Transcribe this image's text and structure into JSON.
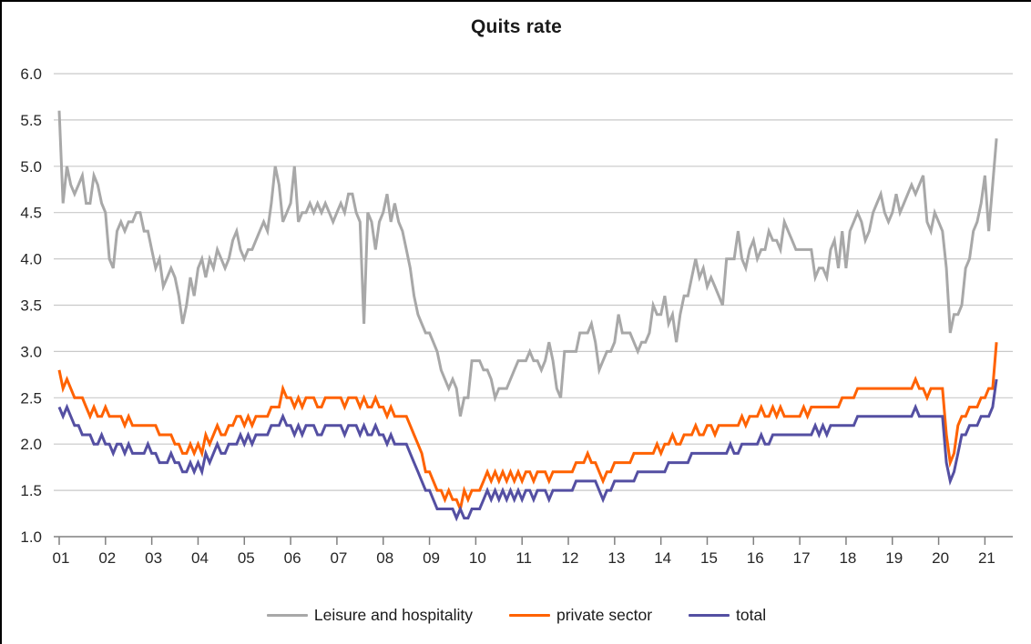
{
  "chart_data": {
    "type": "line",
    "title": "Quits rate",
    "x_start": "2001-01",
    "x_frequency": "monthly",
    "x_tick_labels": [
      "01",
      "02",
      "03",
      "04",
      "05",
      "06",
      "07",
      "08",
      "09",
      "10",
      "11",
      "12",
      "13",
      "14",
      "15",
      "16",
      "17",
      "18",
      "19",
      "20",
      "21"
    ],
    "y_tick_labels": [
      "6.0",
      "5.5",
      "5.0",
      "4.5",
      "4.0",
      "3.5",
      "3.0",
      "2.5",
      "2.0",
      "1.5",
      "1.0"
    ],
    "ylim": [
      1.0,
      6.0
    ],
    "y_tick_step": 0.5,
    "grid": "horizontal",
    "legend_position": "bottom",
    "grid_color": "#c9c9c9",
    "axis_color": "#808080",
    "text_color": "#262626",
    "series": [
      {
        "name": "Leisure and hospitality",
        "color": "#a8a8a8",
        "values": [
          5.6,
          4.6,
          5.0,
          4.8,
          4.7,
          4.8,
          4.9,
          4.6,
          4.6,
          4.9,
          4.8,
          4.6,
          4.5,
          4.0,
          3.9,
          4.3,
          4.4,
          4.3,
          4.4,
          4.4,
          4.5,
          4.5,
          4.3,
          4.3,
          4.1,
          3.9,
          4.0,
          3.7,
          3.8,
          3.9,
          3.8,
          3.6,
          3.3,
          3.5,
          3.8,
          3.6,
          3.9,
          4.0,
          3.8,
          4.0,
          3.9,
          4.1,
          4.0,
          3.9,
          4.0,
          4.2,
          4.3,
          4.1,
          4.0,
          4.1,
          4.1,
          4.2,
          4.3,
          4.4,
          4.3,
          4.6,
          5.0,
          4.8,
          4.4,
          4.5,
          4.6,
          5.0,
          4.4,
          4.5,
          4.5,
          4.6,
          4.5,
          4.6,
          4.5,
          4.6,
          4.5,
          4.4,
          4.5,
          4.6,
          4.5,
          4.7,
          4.7,
          4.5,
          4.4,
          3.3,
          4.5,
          4.4,
          4.1,
          4.4,
          4.5,
          4.7,
          4.4,
          4.6,
          4.4,
          4.3,
          4.1,
          3.9,
          3.6,
          3.4,
          3.3,
          3.2,
          3.2,
          3.1,
          3.0,
          2.8,
          2.7,
          2.6,
          2.7,
          2.6,
          2.3,
          2.5,
          2.5,
          2.9,
          2.9,
          2.9,
          2.8,
          2.8,
          2.7,
          2.5,
          2.6,
          2.6,
          2.6,
          2.7,
          2.8,
          2.9,
          2.9,
          2.9,
          3.0,
          2.9,
          2.9,
          2.8,
          2.9,
          3.1,
          2.9,
          2.6,
          2.5,
          3.0,
          3.0,
          3.0,
          3.0,
          3.2,
          3.2,
          3.2,
          3.3,
          3.1,
          2.8,
          2.9,
          3.0,
          3.0,
          3.1,
          3.4,
          3.2,
          3.2,
          3.2,
          3.1,
          3.0,
          3.1,
          3.1,
          3.2,
          3.5,
          3.4,
          3.4,
          3.6,
          3.3,
          3.4,
          3.1,
          3.4,
          3.6,
          3.6,
          3.8,
          4.0,
          3.8,
          3.9,
          3.7,
          3.8,
          3.7,
          3.6,
          3.5,
          4.0,
          4.0,
          4.0,
          4.3,
          4.0,
          3.9,
          4.1,
          4.2,
          4.0,
          4.1,
          4.1,
          4.3,
          4.2,
          4.2,
          4.1,
          4.4,
          4.3,
          4.2,
          4.1,
          4.1,
          4.1,
          4.1,
          4.1,
          3.8,
          3.9,
          3.9,
          3.8,
          4.1,
          4.2,
          3.9,
          4.3,
          3.9,
          4.3,
          4.4,
          4.5,
          4.4,
          4.2,
          4.3,
          4.5,
          4.6,
          4.7,
          4.5,
          4.4,
          4.5,
          4.7,
          4.5,
          4.6,
          4.7,
          4.8,
          4.7,
          4.8,
          4.9,
          4.4,
          4.3,
          4.5,
          4.4,
          4.3,
          3.9,
          3.2,
          3.4,
          3.4,
          3.5,
          3.9,
          4.0,
          4.3,
          4.4,
          4.6,
          4.9,
          4.3,
          4.8,
          5.3
        ]
      },
      {
        "name": "private sector",
        "color": "#ff6200",
        "values": [
          2.8,
          2.6,
          2.7,
          2.6,
          2.5,
          2.5,
          2.5,
          2.4,
          2.3,
          2.4,
          2.3,
          2.3,
          2.4,
          2.3,
          2.3,
          2.3,
          2.3,
          2.2,
          2.3,
          2.2,
          2.2,
          2.2,
          2.2,
          2.2,
          2.2,
          2.2,
          2.1,
          2.1,
          2.1,
          2.1,
          2.0,
          2.0,
          1.9,
          1.9,
          2.0,
          1.9,
          2.0,
          1.9,
          2.1,
          2.0,
          2.1,
          2.2,
          2.1,
          2.1,
          2.2,
          2.2,
          2.3,
          2.3,
          2.2,
          2.3,
          2.2,
          2.3,
          2.3,
          2.3,
          2.3,
          2.4,
          2.4,
          2.4,
          2.6,
          2.5,
          2.5,
          2.4,
          2.5,
          2.4,
          2.5,
          2.5,
          2.5,
          2.4,
          2.4,
          2.5,
          2.5,
          2.5,
          2.5,
          2.5,
          2.4,
          2.5,
          2.5,
          2.5,
          2.4,
          2.5,
          2.4,
          2.4,
          2.5,
          2.4,
          2.4,
          2.3,
          2.4,
          2.3,
          2.3,
          2.3,
          2.3,
          2.2,
          2.1,
          2.0,
          1.9,
          1.7,
          1.7,
          1.6,
          1.5,
          1.5,
          1.4,
          1.5,
          1.4,
          1.4,
          1.3,
          1.5,
          1.4,
          1.5,
          1.5,
          1.5,
          1.6,
          1.7,
          1.6,
          1.7,
          1.6,
          1.7,
          1.6,
          1.7,
          1.6,
          1.7,
          1.6,
          1.7,
          1.7,
          1.6,
          1.7,
          1.7,
          1.7,
          1.6,
          1.7,
          1.7,
          1.7,
          1.7,
          1.7,
          1.7,
          1.8,
          1.8,
          1.8,
          1.9,
          1.8,
          1.8,
          1.7,
          1.6,
          1.7,
          1.7,
          1.8,
          1.8,
          1.8,
          1.8,
          1.8,
          1.9,
          1.9,
          1.9,
          1.9,
          1.9,
          1.9,
          2.0,
          1.9,
          2.0,
          2.0,
          2.1,
          2.0,
          2.0,
          2.1,
          2.1,
          2.1,
          2.2,
          2.1,
          2.1,
          2.2,
          2.2,
          2.1,
          2.2,
          2.2,
          2.2,
          2.2,
          2.2,
          2.2,
          2.3,
          2.2,
          2.3,
          2.3,
          2.3,
          2.4,
          2.3,
          2.3,
          2.4,
          2.3,
          2.4,
          2.3,
          2.3,
          2.3,
          2.3,
          2.3,
          2.4,
          2.3,
          2.4,
          2.4,
          2.4,
          2.4,
          2.4,
          2.4,
          2.4,
          2.4,
          2.5,
          2.5,
          2.5,
          2.5,
          2.6,
          2.6,
          2.6,
          2.6,
          2.6,
          2.6,
          2.6,
          2.6,
          2.6,
          2.6,
          2.6,
          2.6,
          2.6,
          2.6,
          2.6,
          2.7,
          2.6,
          2.6,
          2.5,
          2.6,
          2.6,
          2.6,
          2.6,
          2.1,
          1.8,
          1.9,
          2.2,
          2.3,
          2.3,
          2.4,
          2.4,
          2.4,
          2.5,
          2.5,
          2.6,
          2.6,
          3.1
        ]
      },
      {
        "name": "total",
        "color": "#544fa2",
        "values": [
          2.4,
          2.3,
          2.4,
          2.3,
          2.2,
          2.2,
          2.1,
          2.1,
          2.1,
          2.0,
          2.0,
          2.1,
          2.0,
          2.0,
          1.9,
          2.0,
          2.0,
          1.9,
          2.0,
          1.9,
          1.9,
          1.9,
          1.9,
          2.0,
          1.9,
          1.9,
          1.8,
          1.8,
          1.8,
          1.9,
          1.8,
          1.8,
          1.7,
          1.7,
          1.8,
          1.7,
          1.8,
          1.7,
          1.9,
          1.8,
          1.9,
          2.0,
          1.9,
          1.9,
          2.0,
          2.0,
          2.0,
          2.1,
          2.0,
          2.1,
          2.0,
          2.1,
          2.1,
          2.1,
          2.1,
          2.2,
          2.2,
          2.2,
          2.3,
          2.2,
          2.2,
          2.1,
          2.2,
          2.1,
          2.2,
          2.2,
          2.2,
          2.1,
          2.1,
          2.2,
          2.2,
          2.2,
          2.2,
          2.2,
          2.1,
          2.2,
          2.2,
          2.2,
          2.1,
          2.2,
          2.1,
          2.1,
          2.2,
          2.1,
          2.1,
          2.0,
          2.1,
          2.0,
          2.0,
          2.0,
          2.0,
          1.9,
          1.8,
          1.7,
          1.6,
          1.5,
          1.5,
          1.4,
          1.3,
          1.3,
          1.3,
          1.3,
          1.3,
          1.2,
          1.3,
          1.2,
          1.2,
          1.3,
          1.3,
          1.3,
          1.4,
          1.5,
          1.4,
          1.5,
          1.4,
          1.5,
          1.4,
          1.5,
          1.4,
          1.5,
          1.4,
          1.5,
          1.5,
          1.4,
          1.5,
          1.5,
          1.5,
          1.4,
          1.5,
          1.5,
          1.5,
          1.5,
          1.5,
          1.5,
          1.6,
          1.6,
          1.6,
          1.6,
          1.6,
          1.6,
          1.5,
          1.4,
          1.5,
          1.5,
          1.6,
          1.6,
          1.6,
          1.6,
          1.6,
          1.6,
          1.7,
          1.7,
          1.7,
          1.7,
          1.7,
          1.7,
          1.7,
          1.7,
          1.8,
          1.8,
          1.8,
          1.8,
          1.8,
          1.8,
          1.9,
          1.9,
          1.9,
          1.9,
          1.9,
          1.9,
          1.9,
          1.9,
          1.9,
          1.9,
          2.0,
          1.9,
          1.9,
          2.0,
          2.0,
          2.0,
          2.0,
          2.0,
          2.1,
          2.0,
          2.0,
          2.1,
          2.1,
          2.1,
          2.1,
          2.1,
          2.1,
          2.1,
          2.1,
          2.1,
          2.1,
          2.1,
          2.2,
          2.1,
          2.2,
          2.1,
          2.2,
          2.2,
          2.2,
          2.2,
          2.2,
          2.2,
          2.2,
          2.3,
          2.3,
          2.3,
          2.3,
          2.3,
          2.3,
          2.3,
          2.3,
          2.3,
          2.3,
          2.3,
          2.3,
          2.3,
          2.3,
          2.3,
          2.4,
          2.3,
          2.3,
          2.3,
          2.3,
          2.3,
          2.3,
          2.3,
          1.8,
          1.6,
          1.7,
          1.9,
          2.1,
          2.1,
          2.2,
          2.2,
          2.2,
          2.3,
          2.3,
          2.3,
          2.4,
          2.7
        ]
      }
    ]
  }
}
